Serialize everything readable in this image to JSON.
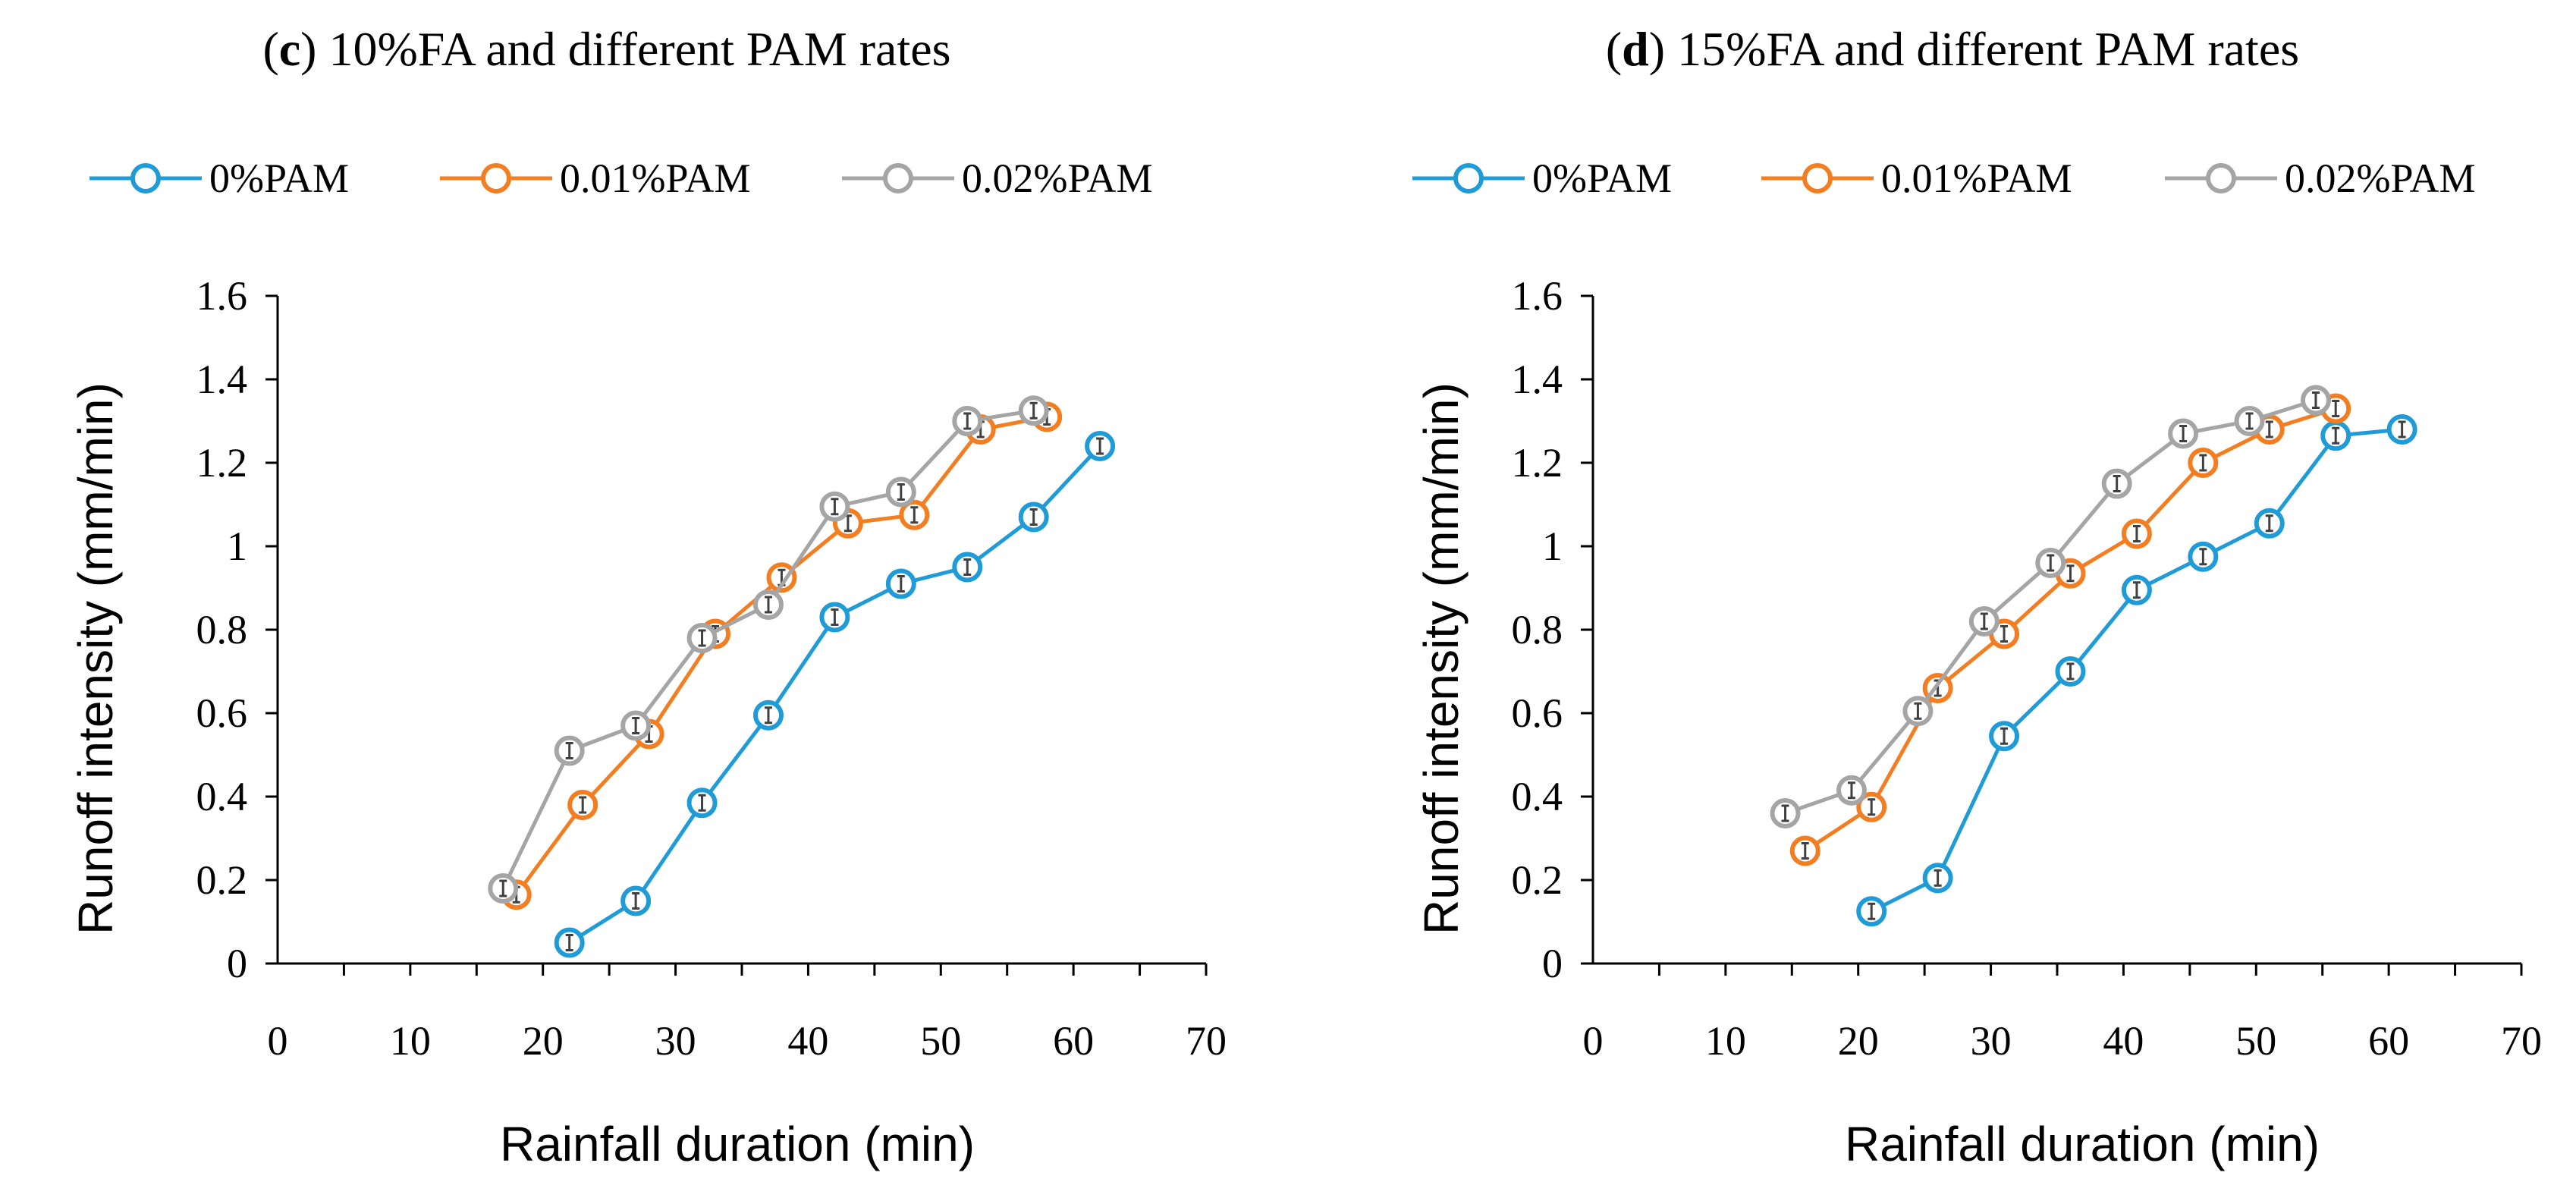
{
  "colors": {
    "0%PAM": "#1f9bd7",
    "0.01%PAM": "#f37e21",
    "0.02%PAM": "#a5a5a5",
    "axis": "#000000",
    "error": "#404040"
  },
  "chart_data": [
    {
      "type": "line",
      "panel": "c",
      "title_letter": "c",
      "title_rest": " 10%FA and different PAM rates",
      "xlabel": "Rainfall duration (min)",
      "ylabel": "Runoff intensity (mm/min)",
      "xlim": [
        0,
        70
      ],
      "ylim": [
        0,
        1.6
      ],
      "xticks": [
        "0",
        "10",
        "20",
        "30",
        "40",
        "50",
        "60",
        "70"
      ],
      "yticks": [
        "0",
        "0.2",
        "0.4",
        "0.6",
        "0.8",
        "1",
        "1.2",
        "1.4",
        "1.6"
      ],
      "legend_position": "top",
      "series": [
        {
          "name": "0%PAM",
          "x": [
            22,
            27,
            32,
            37,
            42,
            47,
            52,
            57,
            62
          ],
          "y": [
            0.05,
            0.15,
            0.385,
            0.595,
            0.83,
            0.91,
            0.95,
            1.07,
            1.24
          ]
        },
        {
          "name": "0.01%PAM",
          "x": [
            18,
            23,
            28,
            33,
            38,
            43,
            48,
            53,
            58
          ],
          "y": [
            0.165,
            0.38,
            0.55,
            0.79,
            0.925,
            1.055,
            1.075,
            1.28,
            1.31
          ]
        },
        {
          "name": "0.02%PAM",
          "x": [
            17,
            22,
            27,
            32,
            37,
            42,
            47,
            52,
            57
          ],
          "y": [
            0.18,
            0.51,
            0.57,
            0.78,
            0.86,
            1.095,
            1.13,
            1.3,
            1.325
          ]
        }
      ]
    },
    {
      "type": "line",
      "panel": "d",
      "title_letter": "d",
      "title_rest": " 15%FA and different PAM rates",
      "xlabel": "Rainfall duration (min)",
      "ylabel": "Runoff intensity (mm/min)",
      "xlim": [
        0,
        70
      ],
      "ylim": [
        0,
        1.6
      ],
      "xticks": [
        "0",
        "10",
        "20",
        "30",
        "40",
        "50",
        "60",
        "70"
      ],
      "yticks": [
        "0",
        "0.2",
        "0.4",
        "0.6",
        "0.8",
        "1",
        "1.2",
        "1.4",
        "1.6"
      ],
      "legend_position": "top",
      "series": [
        {
          "name": "0%PAM",
          "x": [
            21,
            26,
            31,
            36,
            41,
            46,
            51,
            56,
            61
          ],
          "y": [
            0.125,
            0.205,
            0.545,
            0.7,
            0.895,
            0.975,
            1.055,
            1.265,
            1.28
          ]
        },
        {
          "name": "0.01%PAM",
          "x": [
            16,
            21,
            26,
            31,
            36,
            41,
            46,
            51,
            56
          ],
          "y": [
            0.27,
            0.375,
            0.66,
            0.79,
            0.935,
            1.03,
            1.2,
            1.28,
            1.33
          ]
        },
        {
          "name": "0.02%PAM",
          "x": [
            14.5,
            19.5,
            24.5,
            29.5,
            34.5,
            39.5,
            44.5,
            49.5,
            54.5
          ],
          "y": [
            0.36,
            0.415,
            0.605,
            0.82,
            0.96,
            1.15,
            1.27,
            1.3,
            1.35
          ]
        }
      ]
    }
  ]
}
